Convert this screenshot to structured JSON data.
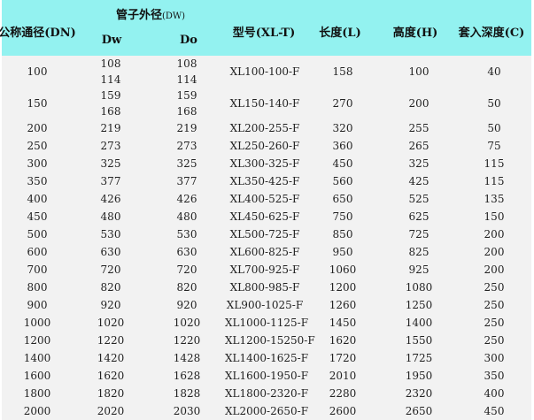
{
  "header": {
    "nominal": "公称通径(DN)",
    "outer_group": "管子外径",
    "outer_group_unit": "(DW)",
    "dw": "Dw",
    "do": "Do",
    "model": "型号(XL-T)",
    "length": "长度(L)",
    "height": "高度(H)",
    "depth": "套入深度(C)"
  },
  "colors": {
    "header_bg": "#93f2f0",
    "body_bg": "#f2f2f2"
  },
  "rows": [
    {
      "dn": "100",
      "dw": [
        "108",
        "114"
      ],
      "do": [
        "108",
        "114"
      ],
      "model": "XL100-100-F",
      "l": "158",
      "h": "100",
      "c": "40"
    },
    {
      "dn": "150",
      "dw": [
        "159",
        "168"
      ],
      "do": [
        "159",
        "168"
      ],
      "model": "XL150-140-F",
      "l": "270",
      "h": "200",
      "c": "50"
    },
    {
      "dn": "200",
      "dw": [
        "219"
      ],
      "do": [
        "219"
      ],
      "model": "XL200-255-F",
      "l": "320",
      "h": "255",
      "c": "50"
    },
    {
      "dn": "250",
      "dw": [
        "273"
      ],
      "do": [
        "273"
      ],
      "model": "XL250-260-F",
      "l": "360",
      "h": "265",
      "c": "75"
    },
    {
      "dn": "300",
      "dw": [
        "325"
      ],
      "do": [
        "325"
      ],
      "model": "XL300-325-F",
      "l": "450",
      "h": "325",
      "c": "115"
    },
    {
      "dn": "350",
      "dw": [
        "377"
      ],
      "do": [
        "377"
      ],
      "model": "XL350-425-F",
      "l": "560",
      "h": "425",
      "c": "115"
    },
    {
      "dn": "400",
      "dw": [
        "426"
      ],
      "do": [
        "426"
      ],
      "model": "XL400-525-F",
      "l": "650",
      "h": "525",
      "c": "135"
    },
    {
      "dn": "450",
      "dw": [
        "480"
      ],
      "do": [
        "480"
      ],
      "model": "XL450-625-F",
      "l": "750",
      "h": "625",
      "c": "150"
    },
    {
      "dn": "500",
      "dw": [
        "530"
      ],
      "do": [
        "530"
      ],
      "model": "XL500-725-F",
      "l": "850",
      "h": "725",
      "c": "200"
    },
    {
      "dn": "600",
      "dw": [
        "630"
      ],
      "do": [
        "630"
      ],
      "model": "XL600-825-F",
      "l": "950",
      "h": "825",
      "c": "200"
    },
    {
      "dn": "700",
      "dw": [
        "720"
      ],
      "do": [
        "720"
      ],
      "model": "XL700-925-F",
      "l": "1060",
      "h": "925",
      "c": "200"
    },
    {
      "dn": "800",
      "dw": [
        "820"
      ],
      "do": [
        "820"
      ],
      "model": "XL800-985-F",
      "l": "1200",
      "h": "1080",
      "c": "250"
    },
    {
      "dn": "900",
      "dw": [
        "920"
      ],
      "do": [
        "920"
      ],
      "model": "XL900-1025-F",
      "l": "1260",
      "h": "1250",
      "c": "250"
    },
    {
      "dn": "1000",
      "dw": [
        "1020"
      ],
      "do": [
        "1020"
      ],
      "model": "XL1000-1125-F",
      "l": "1450",
      "h": "1400",
      "c": "250"
    },
    {
      "dn": "1200",
      "dw": [
        "1220"
      ],
      "do": [
        "1220"
      ],
      "model": "XL1200-15250-F",
      "l": "1620",
      "h": "1550",
      "c": "250"
    },
    {
      "dn": "1400",
      "dw": [
        "1420"
      ],
      "do": [
        "1428"
      ],
      "model": "XL1400-1625-F",
      "l": "1720",
      "h": "1725",
      "c": "300"
    },
    {
      "dn": "1600",
      "dw": [
        "1620"
      ],
      "do": [
        "1628"
      ],
      "model": "XL1600-1950-F",
      "l": "2010",
      "h": "1950",
      "c": "350"
    },
    {
      "dn": "1800",
      "dw": [
        "1820"
      ],
      "do": [
        "1828"
      ],
      "model": "XL1800-2320-F",
      "l": "2280",
      "h": "2320",
      "c": "400"
    },
    {
      "dn": "2000",
      "dw": [
        "2020"
      ],
      "do": [
        "2030"
      ],
      "model": "XL2000-2650-F",
      "l": "2600",
      "h": "2650",
      "c": "450"
    }
  ]
}
